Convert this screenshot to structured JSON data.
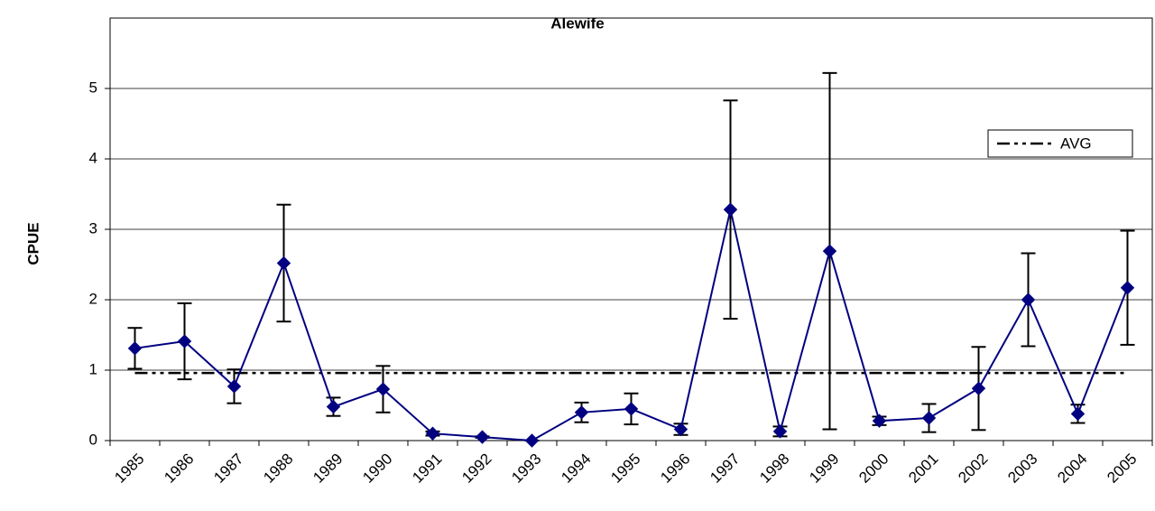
{
  "chart_data": {
    "type": "line",
    "title": "Alewife",
    "y_label": "CPUE",
    "categories": [
      "1985",
      "1986",
      "1987",
      "1988",
      "1989",
      "1990",
      "1991",
      "1992",
      "1993",
      "1994",
      "1995",
      "1996",
      "1997",
      "1998",
      "1999",
      "2000",
      "2001",
      "2002",
      "2003",
      "2004",
      "2005"
    ],
    "values": [
      1.31,
      1.41,
      0.77,
      2.52,
      0.48,
      0.73,
      0.1,
      0.05,
      0.0,
      0.4,
      0.45,
      0.16,
      3.28,
      0.13,
      2.69,
      0.28,
      0.32,
      0.74,
      2.0,
      0.38,
      2.17
    ],
    "errors": [
      0.29,
      0.54,
      0.24,
      0.83,
      0.13,
      0.33,
      0.03,
      0.01,
      0.0,
      0.14,
      0.22,
      0.08,
      1.55,
      0.07,
      2.53,
      0.06,
      0.2,
      0.59,
      0.66,
      0.13,
      0.81
    ],
    "color": "#000080",
    "average": {
      "name": "AVG",
      "value": 0.96,
      "color": "#000000"
    },
    "ylim": [
      0,
      6
    ],
    "yticks": [
      0,
      1,
      2,
      3,
      4,
      5
    ],
    "grid": true,
    "legend": "top-right"
  }
}
